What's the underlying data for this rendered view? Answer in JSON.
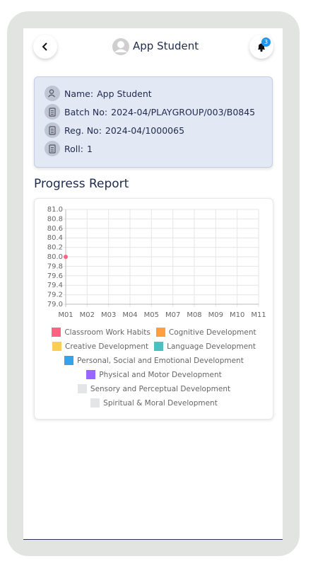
{
  "header": {
    "title": "App Student",
    "badge": "3"
  },
  "info": {
    "rows": [
      {
        "label": "Name:",
        "value": "App Student"
      },
      {
        "label": "Batch No:",
        "value": "2024-04/PLAYGROUP/003/B0845"
      },
      {
        "label": "Reg. No:",
        "value": "2024-04/1000065"
      },
      {
        "label": "Roll:",
        "value": "1"
      }
    ]
  },
  "section_title": "Progress Report",
  "chart_data": {
    "type": "line",
    "categories": [
      "M01",
      "M02",
      "M03",
      "M04",
      "M05",
      "M07",
      "M08",
      "M09",
      "M10",
      "M11"
    ],
    "series": [
      {
        "name": "Classroom Work Habits",
        "color": "#ff6384",
        "values": [
          80,
          null,
          null,
          null,
          null,
          null,
          null,
          null,
          null,
          null
        ]
      },
      {
        "name": "Cognitive Development",
        "color": "#ff9f40",
        "values": [
          null,
          null,
          null,
          null,
          null,
          null,
          null,
          null,
          null,
          null
        ]
      },
      {
        "name": "Creative Development",
        "color": "#ffcd56",
        "values": [
          null,
          null,
          null,
          null,
          null,
          null,
          null,
          null,
          null,
          null
        ]
      },
      {
        "name": "Language Development",
        "color": "#4bc0c0",
        "values": [
          null,
          null,
          null,
          null,
          null,
          null,
          null,
          null,
          null,
          null
        ]
      },
      {
        "name": "Personal, Social and Emotional Development",
        "color": "#36a2eb",
        "values": [
          null,
          null,
          null,
          null,
          null,
          null,
          null,
          null,
          null,
          null
        ]
      },
      {
        "name": "Physical and Motor Development",
        "color": "#9966ff",
        "values": [
          null,
          null,
          null,
          null,
          null,
          null,
          null,
          null,
          null,
          null
        ]
      },
      {
        "name": "Sensory and Perceptual Development",
        "color": "#e4e5e7",
        "values": [
          null,
          null,
          null,
          null,
          null,
          null,
          null,
          null,
          null,
          null
        ]
      },
      {
        "name": "Spiritual & Moral Development",
        "color": "#e4e5e7",
        "values": [
          null,
          null,
          null,
          null,
          null,
          null,
          null,
          null,
          null,
          null
        ]
      }
    ],
    "ylim": [
      79,
      81
    ],
    "yticks": [
      {
        "value": 79,
        "label": "79.0"
      },
      79.2,
      79.4,
      79.6,
      79.8,
      {
        "value": 80,
        "label": "80.0"
      },
      80.2,
      80.4,
      80.6,
      80.8,
      {
        "value": 81,
        "label": "81.0"
      }
    ],
    "grid": true
  }
}
